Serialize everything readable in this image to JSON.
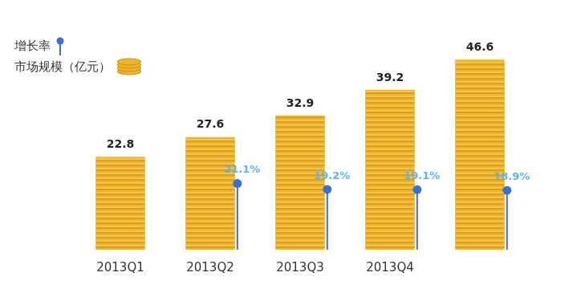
{
  "chart_data": {
    "type": "bar",
    "categories": [
      "2013Q1",
      "2013Q2",
      "2013Q3",
      "2013Q4",
      null
    ],
    "series": [
      {
        "name": "增长率",
        "type": "scatter",
        "marker": "circle",
        "color": "#3b6fd6",
        "axis": "y2",
        "values": [
          null,
          21.1,
          19.2,
          19.1,
          18.9
        ],
        "value_labels": [
          null,
          "21.1%",
          "19.2%",
          "19.1%",
          "18.9%"
        ]
      },
      {
        "name": "市场规模（亿元）",
        "type": "bar",
        "color": "#f0b429",
        "values": [
          22.8,
          27.6,
          32.9,
          39.2,
          46.6
        ]
      }
    ],
    "ylim": [
      0,
      50
    ],
    "y2lim": [
      0,
      65
    ],
    "legend": "top-left",
    "grid": false,
    "data_labels": true,
    "tick_labels": "x"
  }
}
